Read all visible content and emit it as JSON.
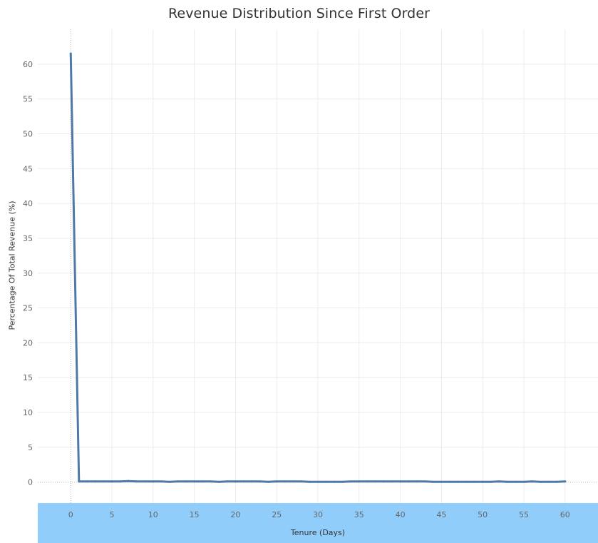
{
  "chart_data": {
    "type": "line",
    "title": "Revenue Distribution Since First Order",
    "xlabel": "Tenure (Days)",
    "ylabel": "Percentage Of Total Revenue (%)",
    "xlim": [
      -4,
      64
    ],
    "ylim": [
      -3,
      65
    ],
    "x_ticks": [
      0,
      5,
      10,
      15,
      20,
      25,
      30,
      35,
      40,
      45,
      50,
      55,
      60
    ],
    "y_ticks": [
      0,
      5,
      10,
      15,
      20,
      25,
      30,
      35,
      40,
      45,
      50,
      55,
      60
    ],
    "grid": true,
    "series": [
      {
        "x": [
          0,
          1,
          2,
          3,
          4,
          5,
          6,
          7,
          8,
          9,
          10,
          11,
          12,
          13,
          14,
          15,
          16,
          17,
          18,
          19,
          20,
          21,
          22,
          23,
          24,
          25,
          26,
          27,
          28,
          29,
          30,
          31,
          32,
          33,
          34,
          35,
          36,
          37,
          38,
          39,
          40,
          41,
          42,
          43,
          44,
          45,
          46,
          47,
          48,
          49,
          50,
          51,
          52,
          53,
          54,
          55,
          56,
          57,
          58,
          59,
          60
        ],
        "values": [
          61.5,
          0.1,
          0.1,
          0.1,
          0.1,
          0.1,
          0.1,
          0.15,
          0.1,
          0.1,
          0.1,
          0.1,
          0.05,
          0.1,
          0.1,
          0.1,
          0.1,
          0.1,
          0.05,
          0.1,
          0.1,
          0.1,
          0.1,
          0.1,
          0.05,
          0.1,
          0.1,
          0.1,
          0.1,
          0.05,
          0.05,
          0.05,
          0.05,
          0.05,
          0.1,
          0.1,
          0.1,
          0.1,
          0.1,
          0.1,
          0.1,
          0.1,
          0.1,
          0.1,
          0.05,
          0.05,
          0.05,
          0.05,
          0.05,
          0.05,
          0.05,
          0.05,
          0.1,
          0.05,
          0.05,
          0.05,
          0.1,
          0.05,
          0.05,
          0.05,
          0.1
        ]
      }
    ],
    "colors": {
      "line": "#4e79a7",
      "axis_band": "#90cdfb",
      "grid": "#ececec",
      "zero_line": "#b5b5b5"
    }
  }
}
